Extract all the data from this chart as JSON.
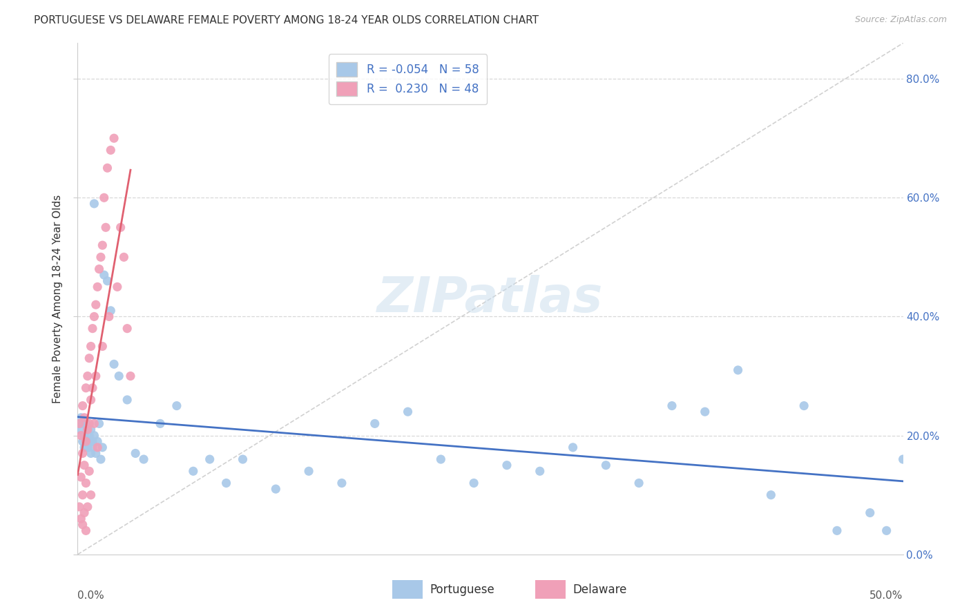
{
  "title": "PORTUGUESE VS DELAWARE FEMALE POVERTY AMONG 18-24 YEAR OLDS CORRELATION CHART",
  "source": "Source: ZipAtlas.com",
  "ylabel": "Female Poverty Among 18-24 Year Olds",
  "xlim": [
    0.0,
    0.5
  ],
  "ylim": [
    0.0,
    0.86
  ],
  "legend_r_portuguese": "-0.054",
  "legend_n_portuguese": "58",
  "legend_r_delaware": "0.230",
  "legend_n_delaware": "48",
  "portuguese_color": "#a8c8e8",
  "delaware_color": "#f0a0b8",
  "portuguese_trend_color": "#4472c4",
  "delaware_trend_color": "#e06070",
  "watermark_text": "ZIPatlas",
  "portuguese_x": [
    0.001,
    0.002,
    0.003,
    0.003,
    0.004,
    0.004,
    0.005,
    0.005,
    0.006,
    0.006,
    0.007,
    0.007,
    0.008,
    0.008,
    0.009,
    0.009,
    0.01,
    0.01,
    0.011,
    0.012,
    0.013,
    0.014,
    0.015,
    0.016,
    0.018,
    0.02,
    0.022,
    0.025,
    0.03,
    0.035,
    0.04,
    0.05,
    0.06,
    0.07,
    0.08,
    0.09,
    0.1,
    0.12,
    0.14,
    0.16,
    0.18,
    0.2,
    0.22,
    0.24,
    0.26,
    0.28,
    0.3,
    0.32,
    0.34,
    0.36,
    0.38,
    0.4,
    0.42,
    0.44,
    0.46,
    0.48,
    0.49,
    0.5
  ],
  "portuguese_y": [
    0.21,
    0.23,
    0.22,
    0.19,
    0.2,
    0.18,
    0.22,
    0.19,
    0.21,
    0.18,
    0.2,
    0.19,
    0.21,
    0.17,
    0.19,
    0.18,
    0.2,
    0.59,
    0.17,
    0.19,
    0.22,
    0.16,
    0.18,
    0.47,
    0.46,
    0.41,
    0.32,
    0.3,
    0.26,
    0.17,
    0.16,
    0.22,
    0.25,
    0.14,
    0.16,
    0.12,
    0.16,
    0.11,
    0.14,
    0.12,
    0.22,
    0.24,
    0.16,
    0.12,
    0.15,
    0.14,
    0.18,
    0.15,
    0.12,
    0.25,
    0.24,
    0.31,
    0.1,
    0.25,
    0.04,
    0.07,
    0.04,
    0.16
  ],
  "delaware_x": [
    0.001,
    0.001,
    0.002,
    0.002,
    0.002,
    0.003,
    0.003,
    0.003,
    0.003,
    0.004,
    0.004,
    0.004,
    0.005,
    0.005,
    0.005,
    0.005,
    0.006,
    0.006,
    0.006,
    0.007,
    0.007,
    0.007,
    0.008,
    0.008,
    0.008,
    0.009,
    0.009,
    0.01,
    0.01,
    0.011,
    0.011,
    0.012,
    0.012,
    0.013,
    0.014,
    0.015,
    0.015,
    0.016,
    0.017,
    0.018,
    0.019,
    0.02,
    0.022,
    0.024,
    0.026,
    0.028,
    0.03,
    0.032
  ],
  "delaware_y": [
    0.22,
    0.08,
    0.2,
    0.13,
    0.06,
    0.25,
    0.17,
    0.1,
    0.05,
    0.23,
    0.15,
    0.07,
    0.28,
    0.19,
    0.12,
    0.04,
    0.3,
    0.21,
    0.08,
    0.33,
    0.22,
    0.14,
    0.35,
    0.26,
    0.1,
    0.38,
    0.28,
    0.4,
    0.22,
    0.42,
    0.3,
    0.45,
    0.18,
    0.48,
    0.5,
    0.52,
    0.35,
    0.6,
    0.55,
    0.65,
    0.4,
    0.68,
    0.7,
    0.45,
    0.55,
    0.5,
    0.38,
    0.3
  ],
  "ytick_positions": [
    0.0,
    0.2,
    0.4,
    0.6,
    0.8
  ],
  "ytick_labels_right": [
    "0.0%",
    "20.0%",
    "40.0%",
    "60.0%",
    "80.0%"
  ]
}
